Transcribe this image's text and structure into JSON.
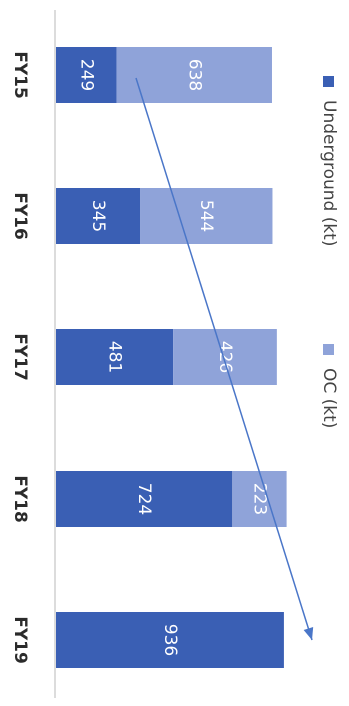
{
  "chart_data": {
    "type": "bar",
    "stacked": true,
    "orientation": "horizontal",
    "rotated_view": "90deg-clockwise",
    "categories": [
      "FY15",
      "FY16",
      "FY17",
      "FY18",
      "FY19"
    ],
    "series": [
      {
        "name": "Underground (kt)",
        "values": [
          249,
          345,
          481,
          724,
          936
        ],
        "color": "#3a5fb4"
      },
      {
        "name": "OC (kt)",
        "values": [
          638,
          544,
          426,
          223,
          0
        ],
        "color": "#8fa3d9"
      }
    ],
    "data_labels": true,
    "legend_placement": "right",
    "grid": false,
    "trend_arrow": {
      "from_category": "FY15",
      "to_category": "FY19",
      "color": "#4a76c8"
    },
    "xlim": [
      0,
      1000
    ]
  }
}
